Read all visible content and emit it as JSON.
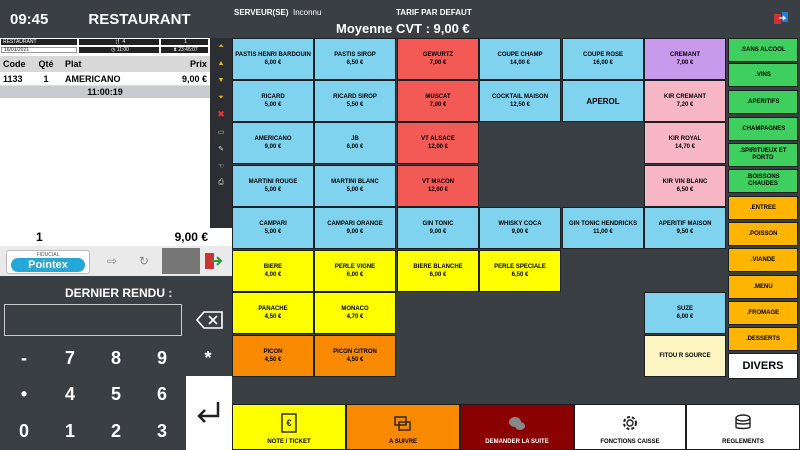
{
  "header": {
    "time": "09:45",
    "title": "RESTAURANT",
    "server_label": "SERVEUR(SE)",
    "server_name": "Inconnu",
    "tarif": "TARIF PAR DEFAUT",
    "moyenne": "Moyenne CVT : 9,00 €"
  },
  "ticket": {
    "info_left_top": "RESTAURANT",
    "info_mid_top": "4",
    "info_right_top": "1",
    "info_date": "16/01/2021",
    "info_time_open": "11:00",
    "info_time_last": "23:45:07",
    "columns": {
      "code": "Code",
      "qte": "Qté",
      "plat": "Plat",
      "prix": "Prix"
    },
    "rows": [
      {
        "code": "1133",
        "qte": "1",
        "plat": "AMERICANO",
        "prix": "9,00 €"
      }
    ],
    "time_row": "11:00:19",
    "total_qty": "1",
    "total_price": "9,00 €"
  },
  "logo": {
    "top": "FIDUCIAL",
    "main": "Pointex"
  },
  "keypad": {
    "label": "DERNIER RENDU :",
    "keys": [
      "-",
      "7",
      "8",
      "9",
      "*",
      "•",
      "4",
      "5",
      "6",
      "0",
      "1",
      "2",
      "3"
    ]
  },
  "products": [
    {
      "name": "PASTIS HENRI BARDOUIN",
      "price": "6,00 €",
      "color": "blue"
    },
    {
      "name": "PASTIS SIROP",
      "price": "6,50 €",
      "color": "blue"
    },
    {
      "name": "GEWURTZ",
      "price": "7,00 €",
      "color": "red"
    },
    {
      "name": "COUPE CHAMP",
      "price": "14,00 €",
      "color": "blue"
    },
    {
      "name": "COUPE ROSE",
      "price": "16,00 €",
      "color": "blue"
    },
    {
      "name": "CREMANT",
      "price": "7,00 €",
      "color": "purple"
    },
    {
      "name": "RICARD",
      "price": "5,00 €",
      "color": "blue"
    },
    {
      "name": "RICARD SIROP",
      "price": "5,50 €",
      "color": "blue"
    },
    {
      "name": "MUSCAT",
      "price": "7,00 €",
      "color": "red"
    },
    {
      "name": "COCKTAIL MAISON",
      "price": "12,50 €",
      "color": "blue"
    },
    {
      "name": "APEROL",
      "price": "",
      "color": "blue"
    },
    {
      "name": "KIR CREMANT",
      "price": "7,20 €",
      "color": "pink"
    },
    {
      "name": "AMERICANO",
      "price": "9,00 €",
      "color": "blue"
    },
    {
      "name": "JB",
      "price": "6,00 €",
      "color": "blue"
    },
    {
      "name": "VT ALSACE",
      "price": "12,00 €",
      "color": "red"
    },
    {
      "name": "KIR ROYAL",
      "price": "14,70 €",
      "color": "pink"
    },
    {
      "name": "MARTINI ROUGE",
      "price": "5,00 €",
      "color": "blue"
    },
    {
      "name": "MARTINI BLANC",
      "price": "5,00 €",
      "color": "blue"
    },
    {
      "name": "VT MACON",
      "price": "12,00 €",
      "color": "red"
    },
    {
      "name": "KIR VIN BLANC",
      "price": "6,50 €",
      "color": "pink"
    },
    {
      "name": "CAMPARI",
      "price": "5,00 €",
      "color": "blue"
    },
    {
      "name": "CAMPARI ORANGE",
      "price": "9,00 €",
      "color": "blue"
    },
    {
      "name": "GIN TONIC",
      "price": "9,00 €",
      "color": "blue"
    },
    {
      "name": "WHISKY COCA",
      "price": "9,00 €",
      "color": "blue"
    },
    {
      "name": "GIN TONIC HENDRICKS",
      "price": "11,00 €",
      "color": "blue"
    },
    {
      "name": "APERITIF MAISON",
      "price": "9,50 €",
      "color": "blue"
    },
    {
      "name": "BIERE",
      "price": "4,00 €",
      "color": "yellow"
    },
    {
      "name": "PERLE VIGNE",
      "price": "6,00 €",
      "color": "yellow"
    },
    {
      "name": "BIERE BLANCHE",
      "price": "6,00 €",
      "color": "yellow"
    },
    {
      "name": "PERLE SPECIALE",
      "price": "6,50 €",
      "color": "yellow"
    },
    {
      "name": "PANACHE",
      "price": "4,50 €",
      "color": "yellow"
    },
    {
      "name": "MONACO",
      "price": "4,70 €",
      "color": "yellow"
    },
    {
      "name": "SUZE",
      "price": "6,00 €",
      "color": "blue"
    },
    {
      "name": "PICON",
      "price": "4,50 €",
      "color": "orange"
    },
    {
      "name": "PICON CITRON",
      "price": "4,50 €",
      "color": "orange"
    },
    {
      "name": "FITOU R SOURCE",
      "price": "",
      "color": "cream"
    }
  ],
  "categories": [
    {
      "label": ".SANS ALCOOL",
      "color": "green"
    },
    {
      "label": ".VINS",
      "color": "green"
    },
    {
      "label": ".APERITIFS",
      "color": "green"
    },
    {
      "label": ".CHAMPAGNES",
      "color": "green"
    },
    {
      "label": ".SPIRITUEUX ET PORTO",
      "color": "green"
    },
    {
      "label": ".BOISSONS CHAUDES",
      "color": "green"
    },
    {
      "label": ".ENTREE",
      "color": "orange"
    },
    {
      "label": ".POISSON",
      "color": "orange"
    },
    {
      "label": ".VIANDE",
      "color": "orange"
    },
    {
      "label": ".MENU",
      "color": "orange"
    },
    {
      "label": ".FROMAGE",
      "color": "orange"
    },
    {
      "label": ".DESSERTS",
      "color": "orange"
    },
    {
      "label": "DIVERS",
      "color": "white"
    }
  ],
  "actions": [
    {
      "label": "NOTE / TICKET",
      "bg": "#ffff00",
      "fg": "#000000",
      "icon": "receipt-icon"
    },
    {
      "label": "A SUIVRE",
      "bg": "#f98a00",
      "fg": "#000000",
      "icon": "layers-icon"
    },
    {
      "label": "DEMANDER LA SUITE",
      "bg": "#8b0000",
      "fg": "#ffffff",
      "icon": "chat-icon"
    },
    {
      "label": "FONCTIONS CAISSE",
      "bg": "#ffffff",
      "fg": "#000000",
      "icon": "gear-icon"
    },
    {
      "label": "REGLEMENTS",
      "bg": "#ffffff",
      "fg": "#000000",
      "icon": "coins-icon"
    }
  ],
  "colors": {
    "background": "#3a3f44",
    "accent_yellow": "#ffff00",
    "accent_blue": "#80d3ef"
  }
}
